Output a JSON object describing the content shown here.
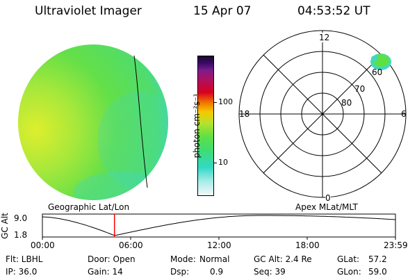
{
  "header": {
    "title": "Ultraviolet Imager",
    "date": "15 Apr 07",
    "time": "04:53:52 UT"
  },
  "colorbar": {
    "unit_label": "photon cm⁻²s⁻¹",
    "ticks": [
      "100",
      "10"
    ]
  },
  "polar_plot": {
    "mlt_labels": {
      "top": "12",
      "left": "18",
      "right": "6",
      "bottom": "0"
    },
    "lat_labels": [
      "60",
      "70",
      "80"
    ]
  },
  "timeline": {
    "y_axis_label": "GC Alt",
    "y_ticks": [
      "9.0",
      "1.8"
    ],
    "left_title": "Geographic Lat/Lon",
    "right_title": "Apex MLat/MLT",
    "x_ticks": [
      "00:00",
      "06:00",
      "12:00",
      "18:00",
      "23:59"
    ],
    "marker_time_fraction": 0.2041
  },
  "info": {
    "flt": "Flt: LBHL",
    "ip": "IP: 36.0",
    "door": "Door: Open",
    "gain": "Gain: 14",
    "mode_label": "Mode:",
    "mode_value": "Normal",
    "dsp_label": "Dsp:",
    "dsp_value": "0.9",
    "gc_alt": "GC Alt: 2.4 Re",
    "seq": "Seq: 39",
    "glat_label": "GLat:",
    "glat_value": "57.2",
    "glon_label": "GLon:",
    "glon_value": "59.0"
  },
  "colors": {
    "disk_main": "#5ee043",
    "disk_bright": "#d8ee2e",
    "disk_dim": "#3fd9c0",
    "marker": "#ff0000"
  }
}
